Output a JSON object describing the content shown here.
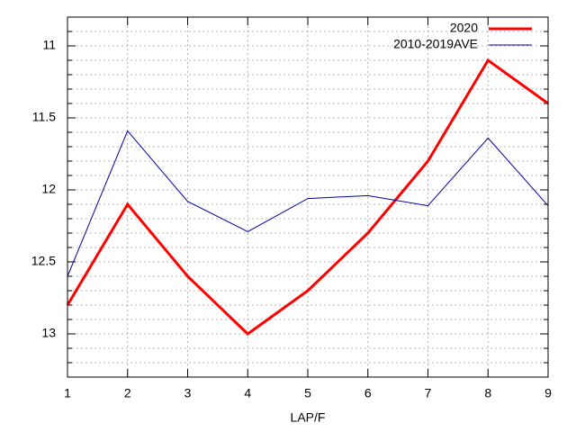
{
  "chart_data": {
    "type": "line",
    "x_label": "LAP/F",
    "x": [
      1,
      2,
      3,
      4,
      5,
      6,
      7,
      8,
      9
    ],
    "xlim": [
      1,
      9
    ],
    "xticks": [
      1,
      2,
      3,
      4,
      5,
      6,
      7,
      8,
      9
    ],
    "ylim": [
      13.3,
      10.8
    ],
    "yticks": [
      11,
      11.5,
      12,
      12.5,
      13
    ],
    "minor_yticks": [
      10.9,
      11.1,
      11.2,
      11.3,
      11.4,
      11.6,
      11.7,
      11.8,
      11.9,
      12.1,
      12.2,
      12.3,
      12.4,
      12.6,
      12.7,
      12.8,
      12.9,
      13.1,
      13.2
    ],
    "grid": true,
    "legend": "top-right",
    "series": [
      {
        "name": "2020",
        "color": "#ff0000",
        "values": [
          12.8,
          12.1,
          12.6,
          13.0,
          12.7,
          12.3,
          11.8,
          11.1,
          11.4
        ]
      },
      {
        "name": "2010-2019AVE",
        "color": "#0000a0",
        "values": [
          12.6,
          11.59,
          12.08,
          12.29,
          12.06,
          12.04,
          12.11,
          11.64,
          12.11
        ]
      }
    ]
  }
}
